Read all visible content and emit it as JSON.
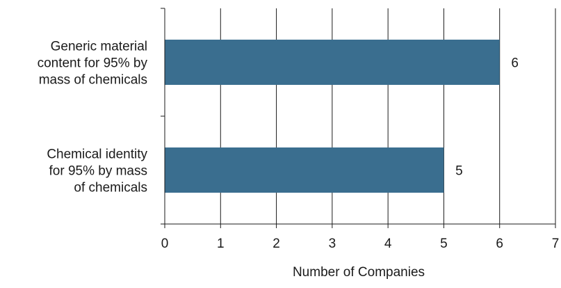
{
  "chart_data": {
    "type": "bar",
    "orientation": "horizontal",
    "categories": [
      "Generic material content for 95% by mass of chemicals",
      "Chemical identity for 95% by mass of chemicals"
    ],
    "category_lines": [
      [
        "Generic material",
        "content for 95% by",
        "mass of chemicals"
      ],
      [
        "Chemical identity",
        "for 95% by mass",
        "of chemicals"
      ]
    ],
    "values": [
      6,
      5
    ],
    "data_labels": [
      "6",
      "5"
    ],
    "xlabel": "Number of Companies",
    "ylabel": "",
    "title": "",
    "xlim": [
      0,
      7
    ],
    "xticks": [
      "0",
      "1",
      "2",
      "3",
      "4",
      "5",
      "6",
      "7"
    ],
    "grid": "vertical",
    "bar_color": "#3a6e8f",
    "grid_color": "#1a1a1a"
  }
}
